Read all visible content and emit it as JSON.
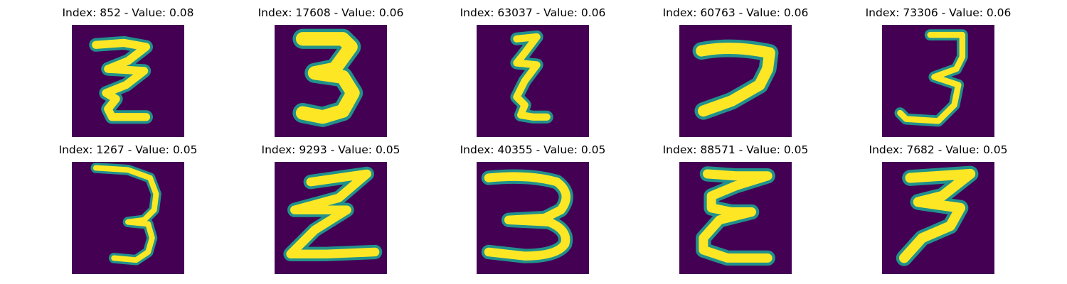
{
  "colormap": {
    "background": "#440154",
    "edge": "#21918c",
    "mid": "#5ec962",
    "stroke": "#fde725"
  },
  "panels": [
    {
      "title": "Index: 852 - Value: 0.08",
      "glyph": "z-loop-3"
    },
    {
      "title": "Index: 17608 - Value: 0.06",
      "glyph": "bold-3"
    },
    {
      "title": "Index: 63037 - Value: 0.06",
      "glyph": "narrow-zigzag-3"
    },
    {
      "title": "Index: 60763 - Value: 0.06",
      "glyph": "sideways-7"
    },
    {
      "title": "Index: 73306 - Value: 0.06",
      "glyph": "slim-3"
    },
    {
      "title": "Index: 1267 - Value: 0.05",
      "glyph": "thin-3"
    },
    {
      "title": "Index: 9293 - Value: 0.05",
      "glyph": "slanted-z-3"
    },
    {
      "title": "Index: 40355 - Value: 0.05",
      "glyph": "wide-3"
    },
    {
      "title": "Index: 88571 - Value: 0.05",
      "glyph": "epsilon-3"
    },
    {
      "title": "Index: 7682 - Value: 0.05",
      "glyph": "italic-3"
    }
  ]
}
